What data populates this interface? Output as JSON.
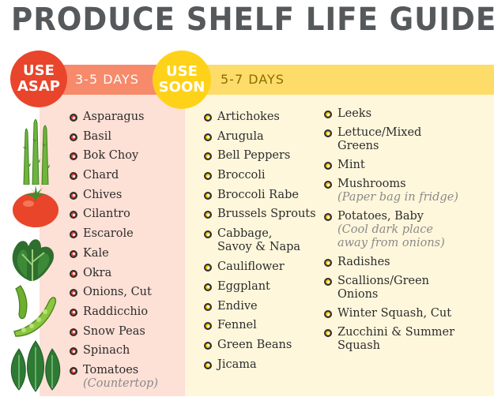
{
  "title": "PRODUCE SHELF LIFE GUIDE",
  "colors": {
    "asap_red": "#e9452c",
    "asap_band": "#f68a6a",
    "asap_bg": "#fde0d6",
    "soon_yellow": "#ffd21a",
    "soon_band": "#fddc6a",
    "soon_bg": "#fff7dc",
    "title_gray": "#55595b"
  },
  "asap": {
    "badge_line1": "USE",
    "badge_line2": "ASAP",
    "days": "3-5 DAYS",
    "items": [
      {
        "label": "Asparagus"
      },
      {
        "label": "Basil"
      },
      {
        "label": "Bok Choy"
      },
      {
        "label": "Chard"
      },
      {
        "label": "Chives"
      },
      {
        "label": "Cilantro"
      },
      {
        "label": "Escarole"
      },
      {
        "label": "Kale"
      },
      {
        "label": "Okra"
      },
      {
        "label": "Onions, Cut"
      },
      {
        "label": "Raddicchio"
      },
      {
        "label": "Snow Peas"
      },
      {
        "label": "Spinach"
      },
      {
        "label": "Tomatoes",
        "note": "(Countertop)"
      }
    ]
  },
  "soon": {
    "badge_line1": "USE",
    "badge_line2": "SOON",
    "days": "5-7 DAYS",
    "col1": [
      {
        "label": "Artichokes"
      },
      {
        "label": "Arugula"
      },
      {
        "label": "Bell Peppers"
      },
      {
        "label": "Broccoli"
      },
      {
        "label": "Broccoli Rabe"
      },
      {
        "label": "Brussels Sprouts"
      },
      {
        "label": "Cabbage,",
        "label2": "Savoy & Napa"
      },
      {
        "label": "Cauliflower"
      },
      {
        "label": "Eggplant"
      },
      {
        "label": "Endive"
      },
      {
        "label": "Fennel"
      },
      {
        "label": "Green Beans"
      },
      {
        "label": "Jicama"
      }
    ],
    "col2": [
      {
        "label": "Leeks"
      },
      {
        "label": "Lettuce/Mixed",
        "label2": "Greens"
      },
      {
        "label": "Mint"
      },
      {
        "label": "Mushrooms",
        "note": "(Paper bag in fridge)"
      },
      {
        "label": "Potatoes, Baby",
        "note": "(Cool dark place",
        "note2": "away from onions)"
      },
      {
        "label": "Radishes"
      },
      {
        "label": "Scallions/Green",
        "label2": "Onions"
      },
      {
        "label": "Winter Squash, Cut"
      },
      {
        "label": "Zucchini & Summer",
        "label2": "Squash"
      }
    ]
  },
  "illustrations": [
    "asparagus-icon",
    "tomato-icon",
    "kale-icon",
    "snow-peas-icon",
    "spinach-icon"
  ]
}
